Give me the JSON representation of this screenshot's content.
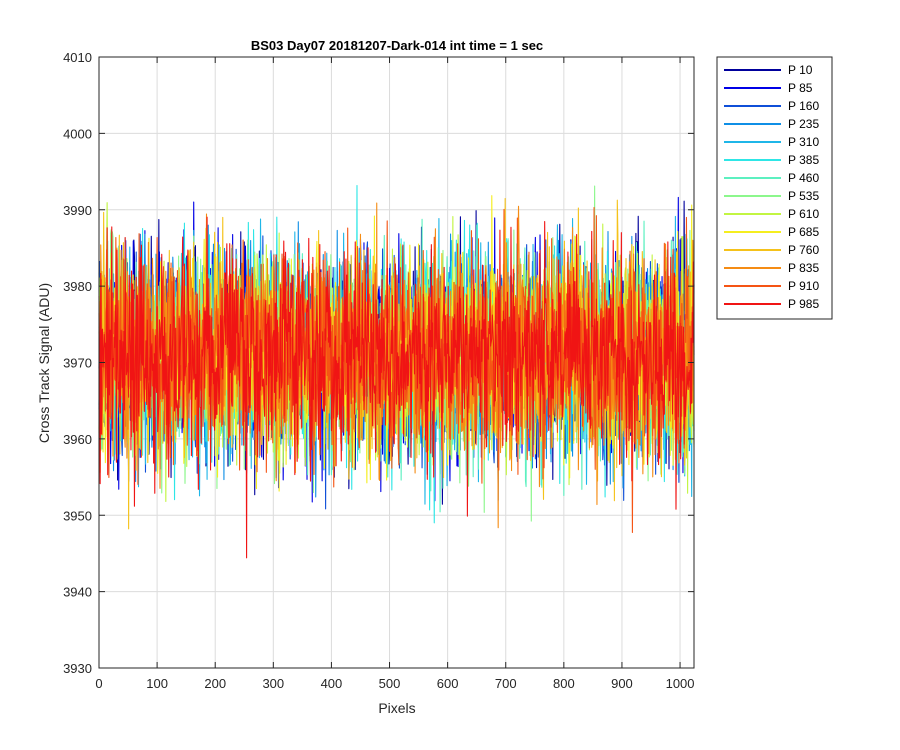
{
  "chart_data": {
    "type": "line",
    "title": "BS03 Day07 20181207-Dark-014 int time = 1 sec",
    "xlabel": "Pixels",
    "ylabel": "Cross Track Signal (ADU)",
    "xlim": [
      0,
      1024
    ],
    "ylim": [
      3930,
      4010
    ],
    "xticks": [
      0,
      100,
      200,
      300,
      400,
      500,
      600,
      700,
      800,
      900,
      1000
    ],
    "yticks": [
      3930,
      3940,
      3950,
      3960,
      3970,
      3980,
      3990,
      4000,
      4010
    ],
    "grid": true,
    "legend_position": "outside-top-right",
    "series": [
      {
        "name": "P 10",
        "color": "#00009c",
        "mean": 3971,
        "spread": 6.5,
        "seed": 11
      },
      {
        "name": "P 85",
        "color": "#0000e6",
        "mean": 3971,
        "spread": 6.5,
        "seed": 23
      },
      {
        "name": "P 160",
        "color": "#0f4fd8",
        "mean": 3971,
        "spread": 6.5,
        "seed": 37
      },
      {
        "name": "P 235",
        "color": "#0f8fe6",
        "mean": 3971,
        "spread": 6.5,
        "seed": 41
      },
      {
        "name": "P 310",
        "color": "#1fb6e8",
        "mean": 3971,
        "spread": 6.5,
        "seed": 53
      },
      {
        "name": "P 385",
        "color": "#2ee6e6",
        "mean": 3971,
        "spread": 6.5,
        "seed": 67
      },
      {
        "name": "P 460",
        "color": "#5cf0c0",
        "mean": 3971,
        "spread": 6.5,
        "seed": 71
      },
      {
        "name": "P 535",
        "color": "#8cf78c",
        "mean": 3971,
        "spread": 6.5,
        "seed": 83
      },
      {
        "name": "P 610",
        "color": "#c2f542",
        "mean": 3971,
        "spread": 6.5,
        "seed": 97
      },
      {
        "name": "P 685",
        "color": "#f5ee1f",
        "mean": 3971,
        "spread": 6.5,
        "seed": 101
      },
      {
        "name": "P 760",
        "color": "#f5c21a",
        "mean": 3971,
        "spread": 6.5,
        "seed": 113
      },
      {
        "name": "P 835",
        "color": "#f58c14",
        "mean": 3971,
        "spread": 6.5,
        "seed": 127
      },
      {
        "name": "P 910",
        "color": "#f55414",
        "mean": 3971,
        "spread": 6.5,
        "seed": 131
      },
      {
        "name": "P 985",
        "color": "#f01414",
        "mean": 3971,
        "spread": 6.5,
        "seed": 139
      }
    ]
  }
}
